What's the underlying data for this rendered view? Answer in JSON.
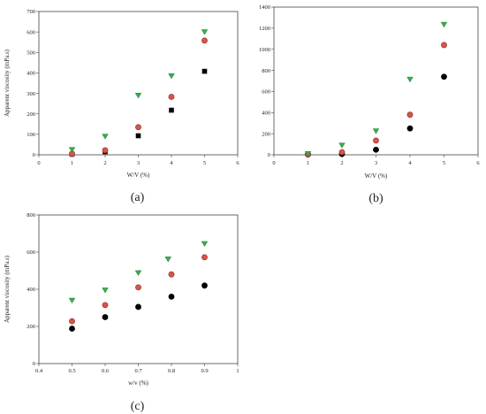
{
  "chart_data": [
    {
      "type": "scatter",
      "panel_label": "(a)",
      "xlabel": "W/V (%)",
      "ylabel": "Apparent viscosity (mPa.s)",
      "xlim": [
        0,
        6
      ],
      "ylim": [
        0,
        700
      ],
      "x_ticks": [
        0,
        1,
        2,
        3,
        4,
        5,
        6
      ],
      "y_ticks": [
        0,
        100,
        200,
        300,
        400,
        500,
        600,
        700
      ],
      "series": [
        {
          "marker": "square",
          "color": "#000000",
          "x": [
            1,
            2,
            3,
            4,
            5
          ],
          "y": [
            3,
            15,
            93,
            218,
            408
          ]
        },
        {
          "marker": "circle",
          "color": "#d9534a",
          "x": [
            1,
            2,
            3,
            4,
            5
          ],
          "y": [
            5,
            22,
            135,
            283,
            558
          ]
        },
        {
          "marker": "triangle-down",
          "color": "#37b04a",
          "x": [
            1,
            2,
            3,
            4,
            5
          ],
          "y": [
            25,
            90,
            290,
            385,
            600
          ]
        }
      ]
    },
    {
      "type": "scatter",
      "panel_label": "(b)",
      "xlabel": "W/V (%)",
      "ylabel": "",
      "xlim": [
        0,
        6
      ],
      "ylim": [
        0,
        1400
      ],
      "x_ticks": [
        0,
        1,
        2,
        3,
        4,
        5,
        6
      ],
      "y_ticks": [
        0,
        200,
        400,
        600,
        800,
        1000,
        1200,
        1400
      ],
      "series": [
        {
          "marker": "circle",
          "color": "#000000",
          "x": [
            1,
            2,
            3,
            4,
            5
          ],
          "y": [
            3,
            8,
            48,
            250,
            740
          ]
        },
        {
          "marker": "circle",
          "color": "#d9534a",
          "x": [
            1,
            2,
            3,
            4,
            5
          ],
          "y": [
            5,
            25,
            135,
            380,
            1040
          ]
        },
        {
          "marker": "triangle-down",
          "color": "#37b04a",
          "x": [
            1,
            2,
            3,
            4,
            5
          ],
          "y": [
            10,
            90,
            225,
            715,
            1235
          ]
        }
      ]
    },
    {
      "type": "scatter",
      "panel_label": "(c)",
      "xlabel": "w/v (%)",
      "ylabel": "Apparent viscosity (mPa.s)",
      "xlim": [
        0.4,
        1.0
      ],
      "ylim": [
        0,
        800
      ],
      "x_ticks": [
        0.4,
        0.5,
        0.6,
        0.7,
        0.8,
        0.9,
        1.0
      ],
      "y_ticks": [
        0,
        200,
        400,
        600,
        800
      ],
      "series": [
        {
          "marker": "circle",
          "color": "#000000",
          "x": [
            0.5,
            0.6,
            0.7,
            0.8,
            0.9
          ],
          "y": [
            188,
            250,
            305,
            360,
            420
          ]
        },
        {
          "marker": "circle",
          "color": "#d9534a",
          "x": [
            0.5,
            0.6,
            0.7,
            0.8,
            0.9
          ],
          "y": [
            228,
            315,
            410,
            480,
            572
          ]
        },
        {
          "marker": "triangle-down",
          "color": "#37b04a",
          "x": [
            0.5,
            0.6,
            0.7,
            0.79,
            0.9
          ],
          "y": [
            340,
            395,
            488,
            562,
            645
          ]
        }
      ]
    }
  ]
}
